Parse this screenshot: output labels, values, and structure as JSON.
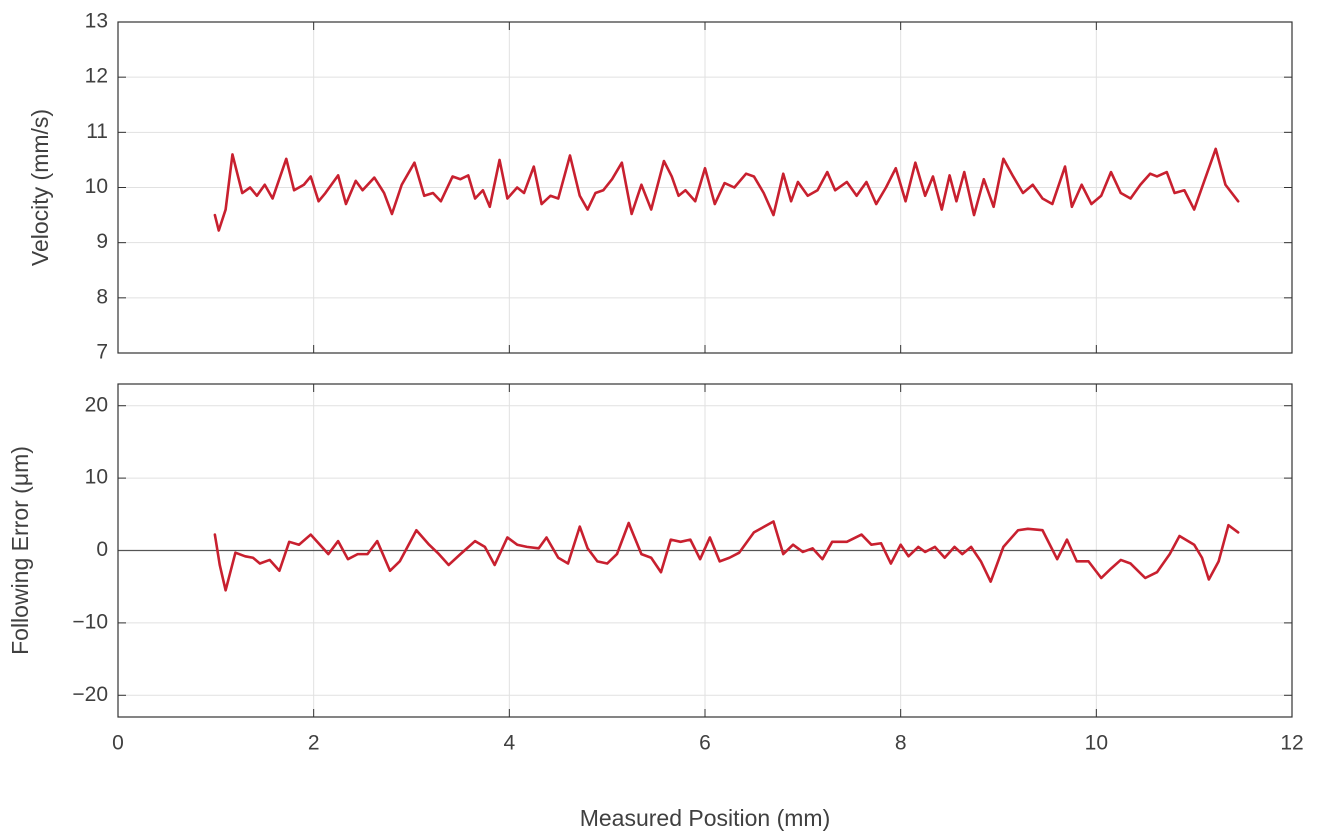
{
  "chart_data": [
    {
      "type": "line",
      "ylabel": "Velocity (mm/s)",
      "xlim": [
        0,
        12
      ],
      "xticks": [
        0,
        2,
        4,
        6,
        8,
        10,
        12
      ],
      "ylim": [
        7,
        13
      ],
      "yticks": [
        7,
        8,
        9,
        10,
        11,
        12,
        13
      ],
      "grid": true,
      "series": [
        {
          "color": "#c8202f",
          "x": [
            0.99,
            1.03,
            1.1,
            1.17,
            1.27,
            1.35,
            1.42,
            1.5,
            1.58,
            1.72,
            1.8,
            1.9,
            1.97,
            2.05,
            2.12,
            2.25,
            2.33,
            2.43,
            2.5,
            2.62,
            2.72,
            2.8,
            2.9,
            3.03,
            3.13,
            3.22,
            3.3,
            3.42,
            3.5,
            3.58,
            3.65,
            3.73,
            3.8,
            3.9,
            3.98,
            4.08,
            4.15,
            4.25,
            4.33,
            4.42,
            4.5,
            4.62,
            4.72,
            4.8,
            4.88,
            4.96,
            5.05,
            5.15,
            5.25,
            5.35,
            5.45,
            5.58,
            5.66,
            5.73,
            5.8,
            5.9,
            6.0,
            6.1,
            6.2,
            6.3,
            6.42,
            6.5,
            6.6,
            6.7,
            6.8,
            6.88,
            6.95,
            7.05,
            7.15,
            7.25,
            7.33,
            7.45,
            7.55,
            7.65,
            7.75,
            7.85,
            7.95,
            8.05,
            8.15,
            8.25,
            8.33,
            8.42,
            8.5,
            8.57,
            8.65,
            8.75,
            8.85,
            8.95,
            9.05,
            9.15,
            9.25,
            9.35,
            9.45,
            9.55,
            9.68,
            9.75,
            9.85,
            9.95,
            10.05,
            10.15,
            10.25,
            10.35,
            10.45,
            10.55,
            10.62,
            10.72,
            10.8,
            10.9,
            11.0,
            11.1,
            11.22,
            11.32,
            11.45
          ],
          "values": [
            9.5,
            9.22,
            9.6,
            10.6,
            9.9,
            10.0,
            9.85,
            10.05,
            9.8,
            10.52,
            9.95,
            10.05,
            10.2,
            9.75,
            9.9,
            10.22,
            9.7,
            10.12,
            9.95,
            10.18,
            9.9,
            9.52,
            10.05,
            10.45,
            9.85,
            9.9,
            9.75,
            10.2,
            10.15,
            10.22,
            9.8,
            9.95,
            9.65,
            10.5,
            9.8,
            10.0,
            9.9,
            10.38,
            9.7,
            9.85,
            9.8,
            10.58,
            9.85,
            9.6,
            9.9,
            9.95,
            10.15,
            10.45,
            9.52,
            10.05,
            9.6,
            10.48,
            10.2,
            9.85,
            9.95,
            9.75,
            10.35,
            9.7,
            10.08,
            10.0,
            10.25,
            10.2,
            9.9,
            9.5,
            10.25,
            9.75,
            10.1,
            9.85,
            9.95,
            10.28,
            9.95,
            10.1,
            9.85,
            10.1,
            9.7,
            10.0,
            10.35,
            9.75,
            10.45,
            9.85,
            10.2,
            9.6,
            10.22,
            9.75,
            10.28,
            9.5,
            10.15,
            9.65,
            10.52,
            10.2,
            9.9,
            10.05,
            9.8,
            9.7,
            10.38,
            9.65,
            10.05,
            9.7,
            9.85,
            10.28,
            9.9,
            9.8,
            10.05,
            10.25,
            10.2,
            10.28,
            9.9,
            9.95,
            9.6,
            10.1,
            10.7,
            10.05,
            9.75
          ]
        }
      ]
    },
    {
      "type": "line",
      "ylabel": "Following Error (μm)",
      "xlabel": "Measured Position (mm)",
      "xlim": [
        0,
        12
      ],
      "xticks": [
        0,
        2,
        4,
        6,
        8,
        10,
        12
      ],
      "ylim": [
        -23,
        23
      ],
      "yticks": [
        {
          "value": -20,
          "label": "−20"
        },
        {
          "value": -10,
          "label": "−10"
        },
        0,
        10,
        20
      ],
      "grid": true,
      "zero_line": true,
      "series": [
        {
          "color": "#c8202f",
          "x": [
            0.99,
            1.04,
            1.1,
            1.2,
            1.3,
            1.38,
            1.45,
            1.55,
            1.65,
            1.75,
            1.85,
            1.97,
            2.05,
            2.15,
            2.25,
            2.35,
            2.45,
            2.55,
            2.65,
            2.78,
            2.88,
            3.05,
            3.18,
            3.28,
            3.38,
            3.5,
            3.65,
            3.75,
            3.85,
            3.98,
            4.08,
            4.18,
            4.3,
            4.38,
            4.5,
            4.6,
            4.72,
            4.8,
            4.9,
            5.0,
            5.1,
            5.22,
            5.35,
            5.45,
            5.55,
            5.65,
            5.75,
            5.85,
            5.95,
            6.05,
            6.15,
            6.25,
            6.35,
            6.5,
            6.7,
            6.8,
            6.9,
            7.0,
            7.1,
            7.2,
            7.3,
            7.45,
            7.6,
            7.7,
            7.8,
            7.9,
            8.0,
            8.08,
            8.18,
            8.25,
            8.35,
            8.45,
            8.55,
            8.63,
            8.72,
            8.82,
            8.92,
            9.05,
            9.2,
            9.3,
            9.45,
            9.6,
            9.7,
            9.8,
            9.92,
            10.05,
            10.15,
            10.25,
            10.35,
            10.5,
            10.62,
            10.75,
            10.85,
            11.0,
            11.08,
            11.15,
            11.25,
            11.35,
            11.45
          ],
          "values": [
            2.2,
            -2,
            -5.5,
            -0.3,
            -0.8,
            -1.0,
            -1.8,
            -1.3,
            -2.8,
            1.2,
            0.8,
            2.2,
            1.0,
            -0.5,
            1.3,
            -1.2,
            -0.5,
            -0.5,
            1.3,
            -2.8,
            -1.5,
            2.8,
            0.8,
            -0.5,
            -2.0,
            -0.5,
            1.3,
            0.5,
            -2.0,
            1.8,
            0.8,
            0.5,
            0.3,
            1.8,
            -1.0,
            -1.8,
            3.3,
            0.3,
            -1.5,
            -1.8,
            -0.5,
            3.8,
            -0.5,
            -1.0,
            -3.0,
            1.5,
            1.2,
            1.5,
            -1.2,
            1.8,
            -1.5,
            -1.0,
            -0.3,
            2.5,
            4.0,
            -0.5,
            0.8,
            -0.2,
            0.3,
            -1.2,
            1.2,
            1.2,
            2.2,
            0.8,
            1.0,
            -1.8,
            0.8,
            -0.8,
            0.5,
            -0.2,
            0.5,
            -1.0,
            0.5,
            -0.5,
            0.5,
            -1.5,
            -4.3,
            0.5,
            2.8,
            3.0,
            2.8,
            -1.2,
            1.5,
            -1.5,
            -1.5,
            -3.8,
            -2.5,
            -1.3,
            -1.8,
            -3.8,
            -3.0,
            -0.5,
            2.0,
            0.8,
            -1.0,
            -4.0,
            -1.5,
            3.5,
            2.5
          ]
        }
      ]
    }
  ]
}
